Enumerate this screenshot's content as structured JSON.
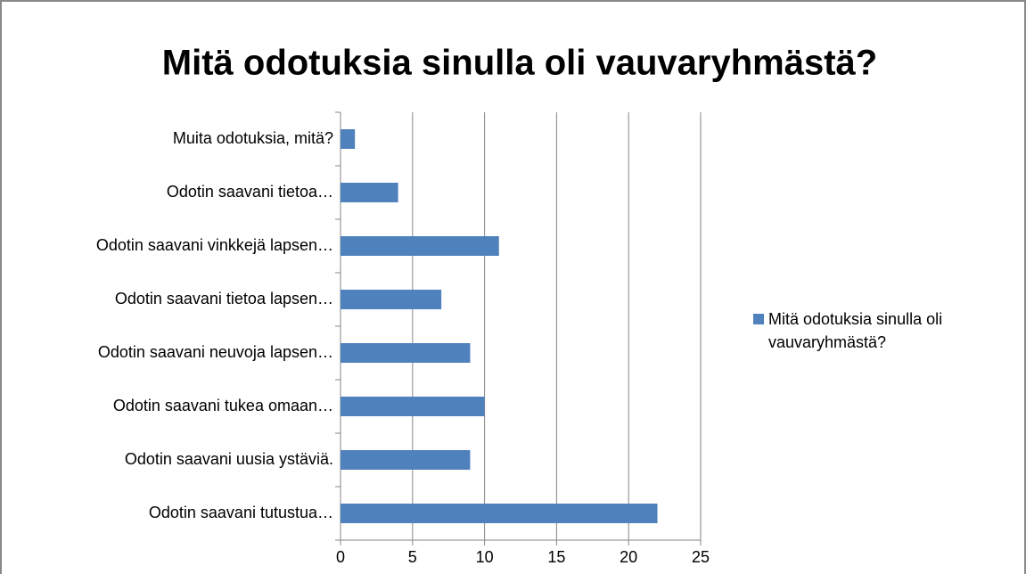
{
  "chart_data": {
    "type": "bar",
    "orientation": "horizontal",
    "title": "Mitä odotuksia sinulla oli vauvaryhmästä?",
    "categories": [
      "Muita odotuksia, mitä?",
      "Odotin saavani tietoa…",
      "Odotin saavani vinkkejä lapsen…",
      "Odotin saavani tietoa lapsen…",
      "Odotin saavani neuvoja lapsen…",
      "Odotin saavani tukea omaan…",
      "Odotin saavani uusia ystäviä.",
      "Odotin saavani tutustua…"
    ],
    "series": [
      {
        "name": "Mitä odotuksia sinulla oli vauvaryhmästä?",
        "color": "#4f81bd",
        "values": [
          1,
          4,
          11,
          7,
          9,
          10,
          9,
          22
        ]
      }
    ],
    "xlim": [
      0,
      25
    ],
    "xticks": [
      0,
      5,
      10,
      15,
      20,
      25
    ],
    "grid": true,
    "legend": "right"
  }
}
